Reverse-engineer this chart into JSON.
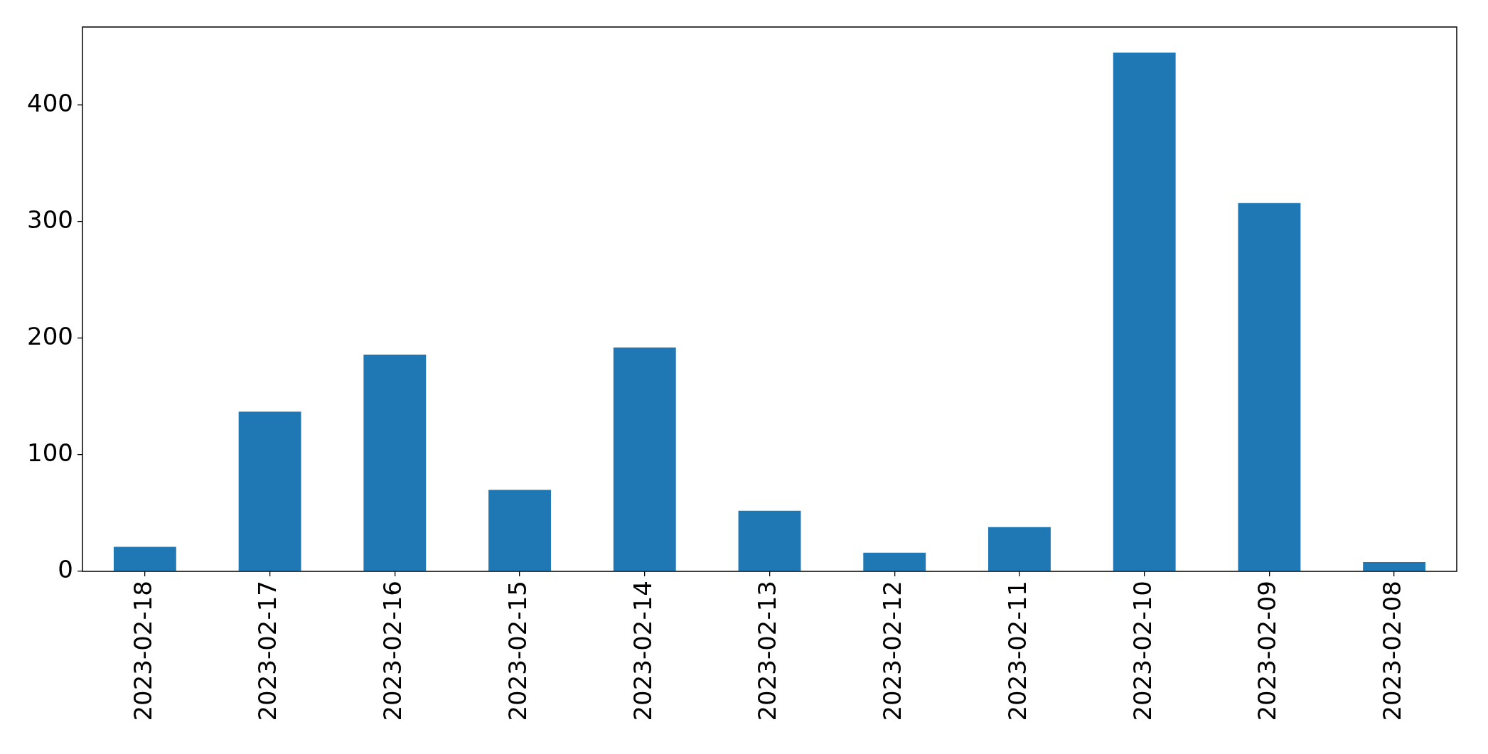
{
  "chart_data": {
    "type": "bar",
    "categories": [
      "2023-02-18",
      "2023-02-17",
      "2023-02-16",
      "2023-02-15",
      "2023-02-14",
      "2023-02-13",
      "2023-02-12",
      "2023-02-11",
      "2023-02-10",
      "2023-02-09",
      "2023-02-08"
    ],
    "values": [
      21,
      137,
      186,
      70,
      192,
      52,
      16,
      38,
      445,
      316,
      8
    ],
    "color": "#1f77b4",
    "ylim": [
      0,
      467
    ],
    "yticks": [
      0,
      100,
      200,
      300,
      400
    ]
  }
}
